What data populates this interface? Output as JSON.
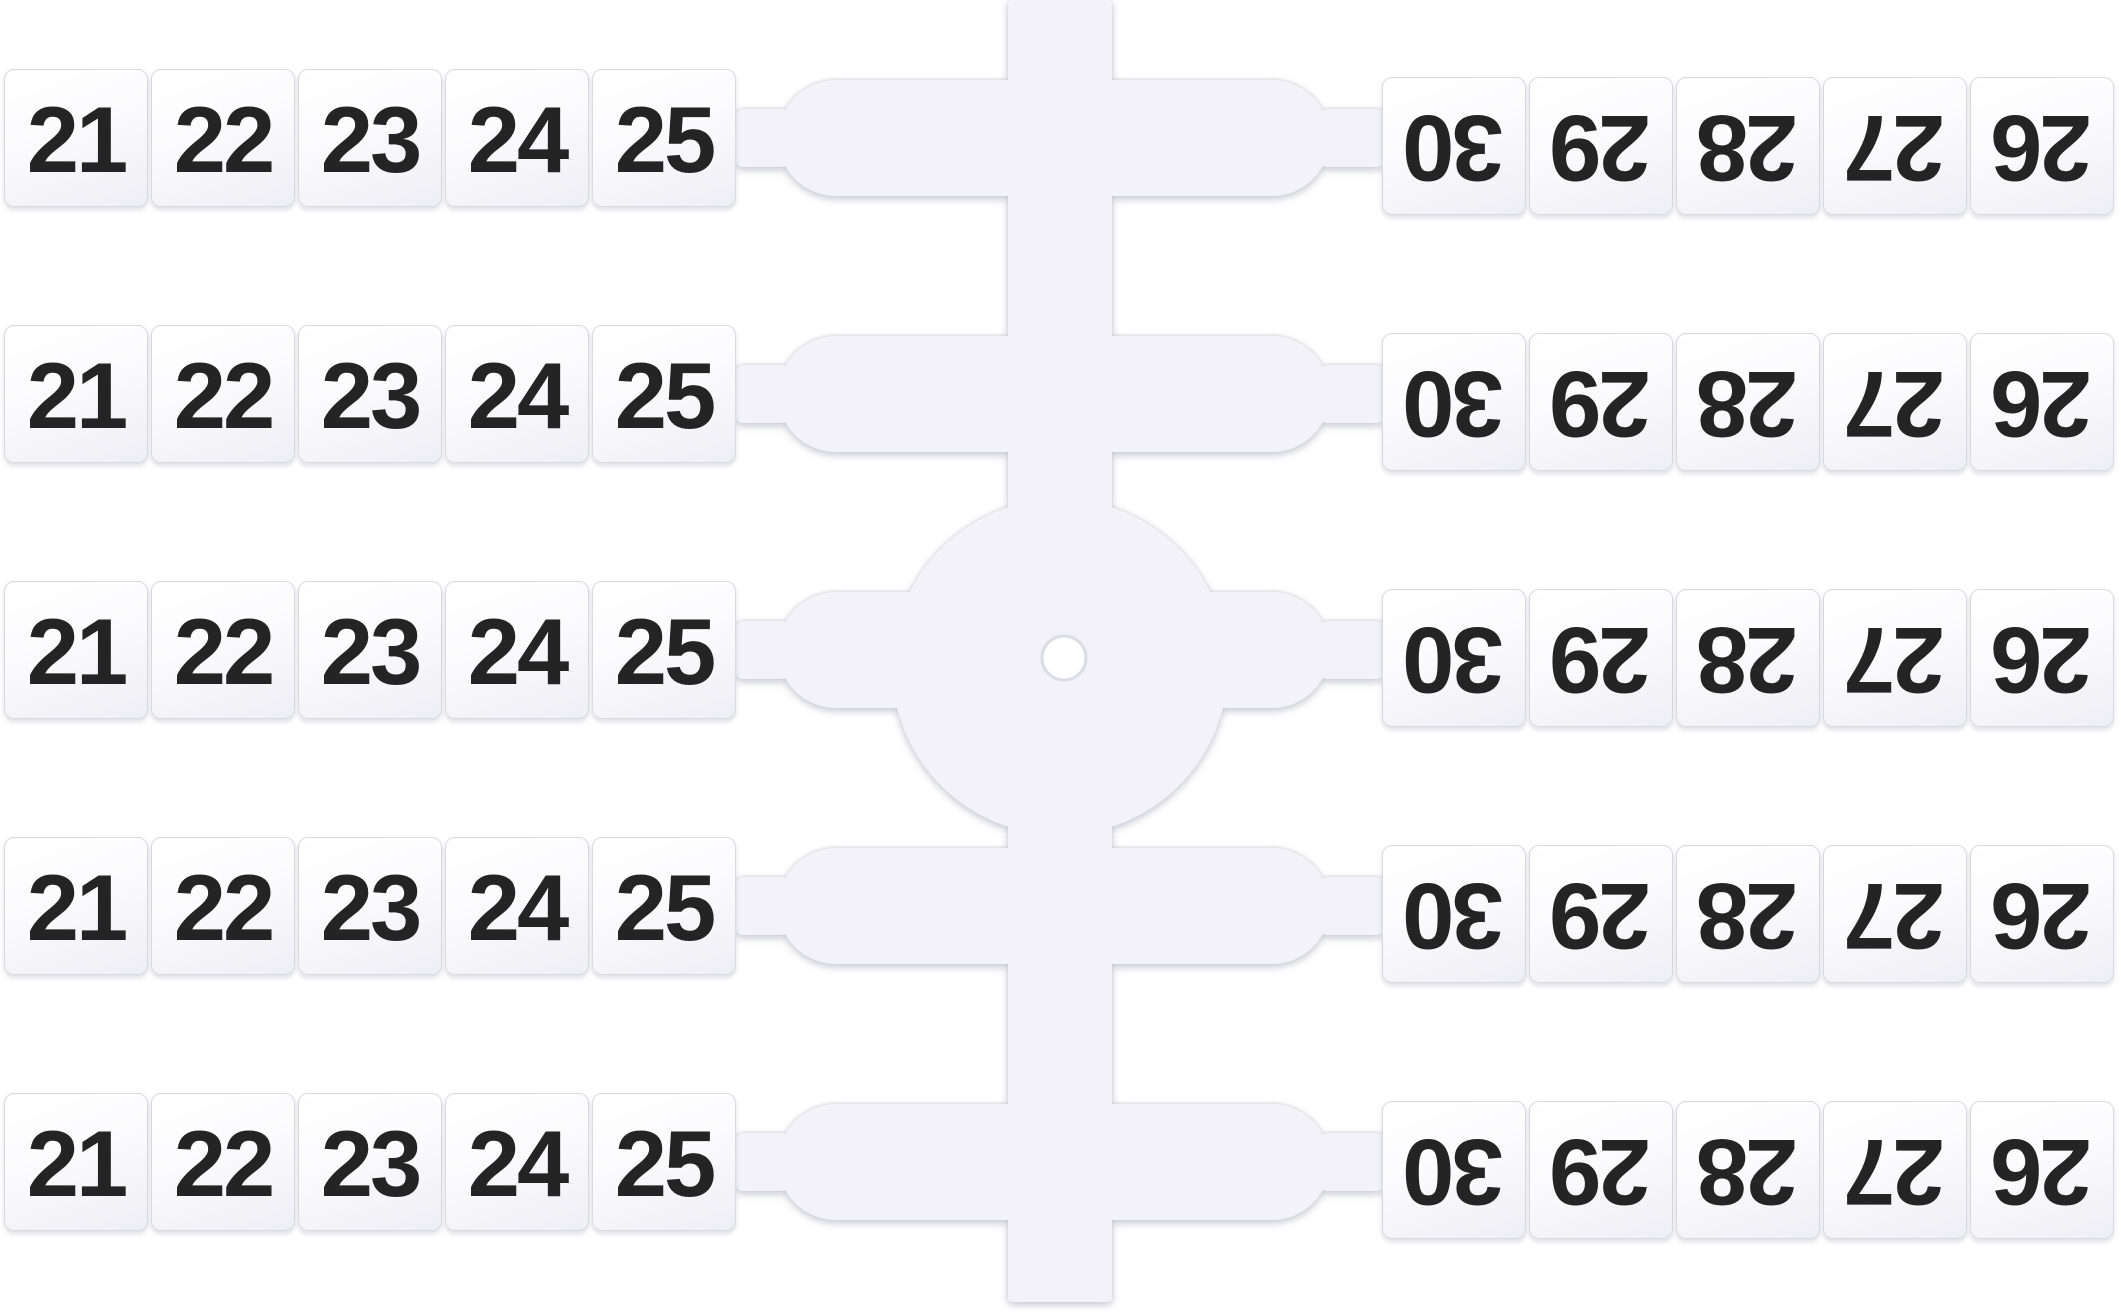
{
  "marker_sheet": {
    "row_count": 5,
    "left_labels": [
      "21",
      "22",
      "23",
      "24",
      "25"
    ],
    "right_labels": [
      "30",
      "29",
      "28",
      "27",
      "26"
    ],
    "right_labels_rotated_180": true
  },
  "colors": {
    "background": "#ffffff",
    "plastic": "#f2f2f8",
    "plastic_edge": "#dcdce6",
    "tile_face": "#fbfbfd",
    "tile_border": "#d9d9e3",
    "digit": "#242424"
  }
}
